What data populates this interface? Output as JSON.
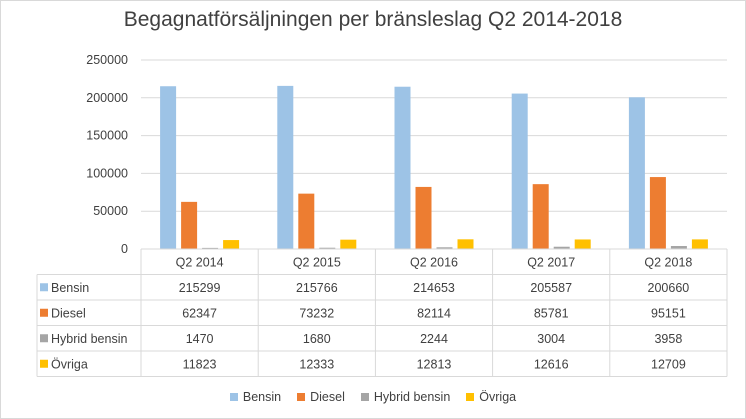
{
  "chart_data": {
    "type": "bar",
    "title": "Begagnatförsäljningen per bränsleslag Q2 2014-2018",
    "categories": [
      "Q2 2014",
      "Q2 2015",
      "Q2 2016",
      "Q2 2017",
      "Q2 2018"
    ],
    "series": [
      {
        "name": "Bensin",
        "color": "#9dc3e6",
        "values": [
          215299,
          215766,
          214653,
          205587,
          200660
        ]
      },
      {
        "name": "Diesel",
        "color": "#ed7d31",
        "values": [
          62347,
          73232,
          82114,
          85781,
          95151
        ]
      },
      {
        "name": "Hybrid bensin",
        "color": "#a5a5a5",
        "values": [
          1470,
          1680,
          2244,
          3004,
          3958
        ]
      },
      {
        "name": "Övriga",
        "color": "#ffc000",
        "values": [
          11823,
          12333,
          12813,
          12616,
          12709
        ]
      }
    ],
    "yticks": [
      "0",
      "50000",
      "100000",
      "150000",
      "200000",
      "250000"
    ],
    "ylim": [
      0,
      250000
    ],
    "grid": true,
    "legend": "bottom",
    "data_table": true
  }
}
